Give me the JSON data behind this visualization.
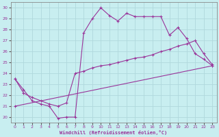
{
  "xlabel": "Windchill (Refroidissement éolien,°C)",
  "bg_color": "#c8eef0",
  "grid_color": "#b0d8dc",
  "line_color": "#993399",
  "xlim": [
    -0.5,
    23.5
  ],
  "ylim": [
    19.5,
    30.5
  ],
  "xticks": [
    0,
    1,
    2,
    3,
    4,
    5,
    6,
    7,
    8,
    9,
    10,
    11,
    12,
    13,
    14,
    15,
    16,
    17,
    18,
    19,
    20,
    21,
    22,
    23
  ],
  "yticks": [
    20,
    21,
    22,
    23,
    24,
    25,
    26,
    27,
    28,
    29,
    30
  ],
  "series1_x": [
    0,
    1,
    2,
    3,
    4,
    5,
    6,
    7,
    8,
    9,
    10,
    11,
    12,
    13,
    14,
    15,
    16,
    17,
    18,
    19,
    20,
    21,
    22,
    23
  ],
  "series1_y": [
    23.5,
    22.5,
    21.5,
    21.2,
    21.0,
    19.9,
    20.0,
    20.0,
    27.7,
    29.0,
    30.0,
    29.3,
    28.8,
    29.5,
    29.2,
    29.2,
    29.2,
    29.2,
    27.5,
    28.2,
    27.2,
    25.8,
    25.3,
    24.7
  ],
  "series2_x": [
    0,
    1,
    2,
    3,
    4,
    5,
    6,
    7,
    8,
    9,
    10,
    11,
    12,
    13,
    14,
    15,
    16,
    17,
    18,
    19,
    20,
    21,
    22,
    23
  ],
  "series2_y": [
    23.5,
    22.2,
    21.8,
    21.5,
    21.2,
    21.0,
    21.3,
    24.0,
    24.2,
    24.5,
    24.7,
    24.8,
    25.0,
    25.2,
    25.4,
    25.5,
    25.7,
    26.0,
    26.2,
    26.5,
    26.7,
    27.0,
    25.8,
    24.8
  ],
  "series3_x": [
    0,
    23
  ],
  "series3_y": [
    21.0,
    24.7
  ]
}
